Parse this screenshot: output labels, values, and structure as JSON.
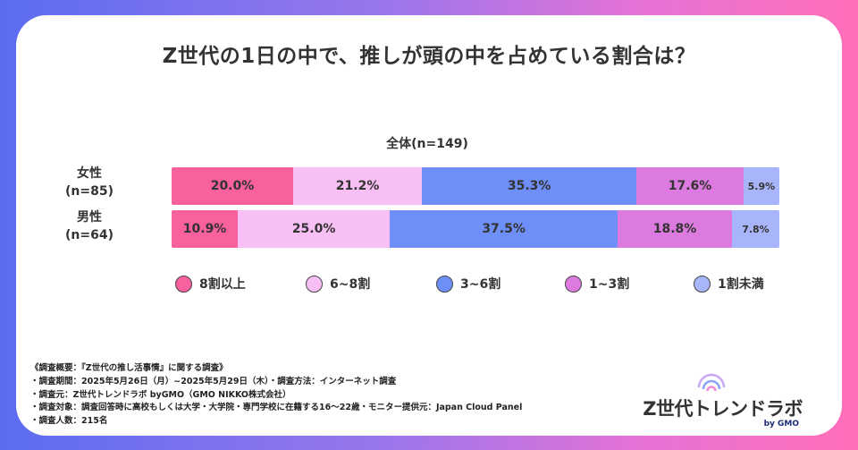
{
  "title": "Z世代の1日の中で、推しが頭の中を占めている割合は？",
  "chart_data": {
    "type": "bar",
    "stacked": true,
    "orientation": "horizontal",
    "subtitle": "全体(n=149)",
    "categories": [
      "女性",
      "男性"
    ],
    "category_n": [
      "(n=85)",
      "(n=64)"
    ],
    "series": [
      {
        "name": "8割以上",
        "color": "#f9609e",
        "values": [
          20.0,
          10.9
        ],
        "labels": [
          "20.0%",
          "10.9%"
        ]
      },
      {
        "name": "6~8割",
        "color": "#f8bff5",
        "values": [
          21.2,
          25.0
        ],
        "labels": [
          "21.2%",
          "25.0%"
        ]
      },
      {
        "name": "3~6割",
        "color": "#6f8ff8",
        "values": [
          35.3,
          37.5
        ],
        "labels": [
          "35.3%",
          "37.5%"
        ]
      },
      {
        "name": "1~3割",
        "color": "#dd7ae0",
        "values": [
          17.6,
          18.8
        ],
        "labels": [
          "17.6%",
          "18.8%"
        ]
      },
      {
        "name": "1割未満",
        "color": "#a9b5fb",
        "values": [
          5.9,
          7.8
        ],
        "labels": [
          "5.9%",
          "7.8%"
        ]
      }
    ],
    "xlim": [
      0,
      100
    ],
    "legend_position": "bottom"
  },
  "notes": [
    "《調査概要：『Z世代の推し活事情』に関する調査》",
    "・調査期間：2025年5月26日（月）~2025年5月29日（木）・調査方法：インターネット調査",
    "・調査元：Z世代トレンドラボ byGMO（GMO NIKKO株式会社）",
    "・調査対象：調査回答時に高校もしくは大学・大学院・専門学校に在籍する16〜22歳・モニター提供元：Japan Cloud Panel",
    "・調査人数：215名"
  ],
  "logo": {
    "name": "Z世代トレンドラボ",
    "by": "by GMO"
  }
}
